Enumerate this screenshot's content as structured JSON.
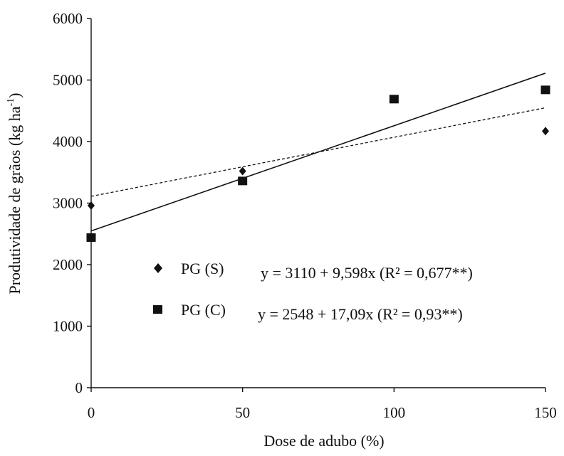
{
  "chart_data": {
    "type": "scatter",
    "title": "",
    "xlabel": "Dose de adubo (%)",
    "ylabel_main": "Produtividade de grãos (kg ha",
    "ylabel_sup": "-1",
    "ylabel_close": ")",
    "xlim": [
      0,
      150
    ],
    "ylim": [
      0,
      6000
    ],
    "x_ticks": [
      0,
      50,
      100,
      150
    ],
    "y_ticks": [
      0,
      1000,
      2000,
      3000,
      4000,
      5000,
      6000
    ],
    "grid": false,
    "legend_position": "center-left",
    "series": [
      {
        "name": "PG (S)",
        "marker": "diamond",
        "points": [
          {
            "x": 0,
            "y": 2960
          },
          {
            "x": 50,
            "y": 3520
          },
          {
            "x": 150,
            "y": 4170
          }
        ],
        "trend": {
          "intercept": 3110,
          "slope": 9.598,
          "style": "dashed",
          "equation": "y = 3110 + 9,598x (R² = 0,677**)"
        }
      },
      {
        "name": "PG (C)",
        "marker": "square",
        "points": [
          {
            "x": 0,
            "y": 2440
          },
          {
            "x": 50,
            "y": 3360
          },
          {
            "x": 100,
            "y": 4690
          },
          {
            "x": 150,
            "y": 4840
          }
        ],
        "trend": {
          "intercept": 2548,
          "slope": 17.09,
          "style": "solid",
          "equation": "y = 2548 + 17,09x  (R² = 0,93**)"
        }
      }
    ]
  }
}
